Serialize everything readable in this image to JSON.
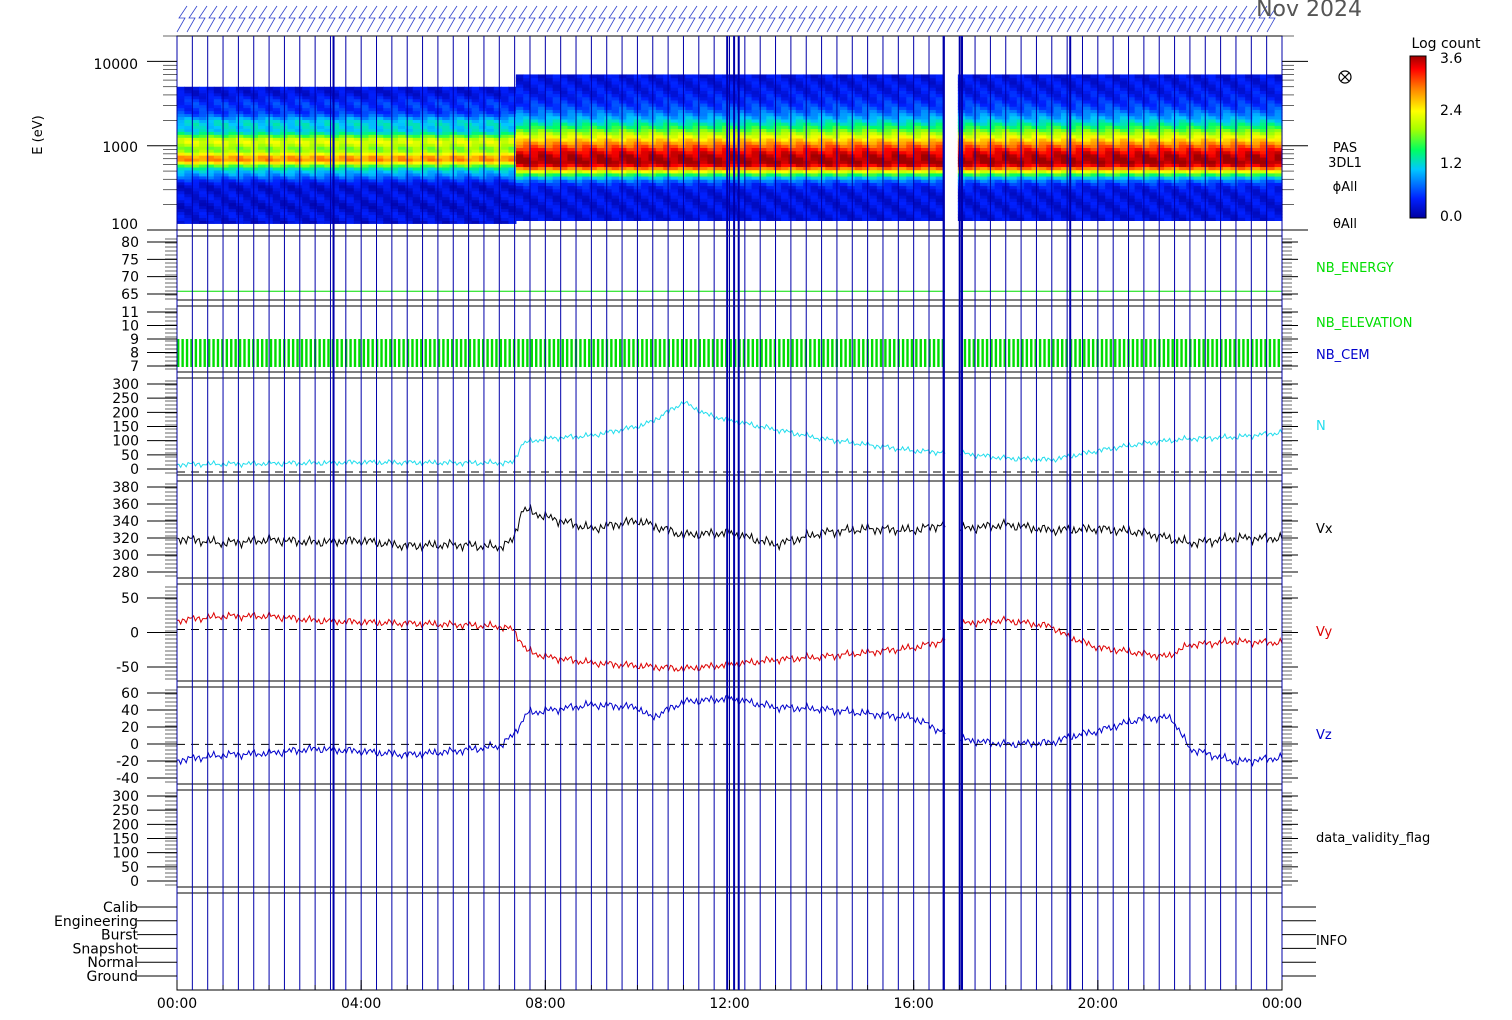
{
  "date_label": "Nov 2024",
  "colorbar": {
    "title": "Log count",
    "ticks": [
      "3.6",
      "2.4",
      "1.2",
      "0.0"
    ],
    "range": [
      0.0,
      3.6
    ]
  },
  "colors": {
    "N": "#22dded",
    "Vx": "#000000",
    "Vy": "#dd0000",
    "Vz": "#0000cc",
    "green": "#00dd00",
    "gridline": "#0000aa"
  },
  "x_axis": {
    "ticks": [
      "00:00",
      "04:00",
      "08:00",
      "12:00",
      "16:00",
      "20:00",
      "00:00"
    ]
  },
  "panels": {
    "spectrogram": {
      "ylabel": "E (eV)",
      "yticks": [
        "10000",
        "1000",
        "100"
      ],
      "right_labels": [
        "PAS",
        "3DL1",
        "ϕAll",
        "θAll"
      ],
      "icon": "circled-times-icon"
    },
    "nb_energy": {
      "yticks": [
        "80",
        "75",
        "70",
        "65"
      ],
      "label": "NB_ENERGY"
    },
    "nb_elevation": {
      "yticks": [
        "11",
        "10",
        "9",
        "8",
        "7"
      ],
      "labels": [
        "NB_ELEVATION",
        "NB_CEM"
      ]
    },
    "density": {
      "yticks": [
        "300",
        "250",
        "200",
        "150",
        "100",
        "50",
        "0"
      ],
      "label": "N"
    },
    "vx": {
      "yticks": [
        "380",
        "360",
        "340",
        "320",
        "300",
        "280"
      ],
      "label": "Vx"
    },
    "vy": {
      "yticks": [
        "50",
        "0",
        "-50"
      ],
      "label": "Vy"
    },
    "vz": {
      "yticks": [
        "60",
        "40",
        "20",
        "0",
        "-20",
        "-40"
      ],
      "label": "Vz"
    },
    "validity": {
      "yticks": [
        "300",
        "250",
        "200",
        "150",
        "100",
        "50",
        "0"
      ],
      "label": "data_validity_flag"
    },
    "info": {
      "yticks": [
        "Calib",
        "Engineering",
        "Burst",
        "Snapshot",
        "Normal",
        "Ground"
      ],
      "label": "INFO"
    }
  },
  "chart_data": [
    {
      "type": "heatmap",
      "name": "PAS 3DL1 energy spectrogram",
      "x_hours": [
        0,
        7.3,
        7.4,
        16.6,
        16.7,
        17.0,
        24
      ],
      "energy_band_eV": {
        "before_7_3h": [
          120,
          5000
        ],
        "after_7_3h": [
          130,
          7000
        ]
      },
      "peak_energy_eV": {
        "before_7_3h": 700,
        "after_7_3h": 650
      },
      "peak_log_count": {
        "before_7_3h": 2.4,
        "after_7_3h": 3.3
      },
      "data_gap_hours": [
        16.7,
        17.0
      ],
      "ylim_eV": [
        100,
        20000
      ],
      "y_scale": "log"
    },
    {
      "type": "line",
      "name": "N",
      "x_hours": [
        0,
        2,
        4,
        6,
        7.3,
        7.5,
        8,
        9,
        10,
        10.3,
        11,
        11.5,
        12,
        13,
        14,
        15,
        16,
        16.6,
        17.1,
        18,
        19,
        20,
        21,
        22,
        23,
        24
      ],
      "values": [
        25,
        28,
        32,
        30,
        30,
        95,
        110,
        120,
        150,
        165,
        230,
        190,
        170,
        140,
        110,
        90,
        70,
        65,
        60,
        45,
        40,
        70,
        95,
        110,
        115,
        130
      ],
      "ylim": [
        -10,
        310
      ]
    },
    {
      "type": "line",
      "name": "Vx",
      "x_hours": [
        0,
        1,
        2,
        3,
        4,
        5,
        6,
        7,
        7.3,
        7.5,
        8,
        9,
        10,
        11,
        12,
        13,
        14,
        15,
        16,
        16.6,
        17.1,
        18,
        19,
        20,
        21,
        22,
        23,
        24
      ],
      "values": [
        318,
        312,
        316,
        313,
        315,
        308,
        310,
        307,
        315,
        355,
        345,
        330,
        340,
        322,
        325,
        310,
        325,
        330,
        328,
        335,
        330,
        335,
        328,
        330,
        325,
        312,
        318,
        318
      ],
      "ylim": [
        268,
        390
      ]
    },
    {
      "type": "line",
      "name": "Vy",
      "x_hours": [
        0,
        1,
        2,
        3,
        4,
        5,
        6,
        7,
        7.3,
        7.6,
        8,
        9,
        10,
        11,
        12,
        13,
        14,
        15,
        16,
        16.6,
        17.1,
        18,
        19,
        19.3,
        20,
        21,
        21.5,
        22,
        23,
        24
      ],
      "values": [
        15,
        22,
        22,
        15,
        12,
        10,
        8,
        5,
        0,
        -35,
        -45,
        -55,
        -60,
        -65,
        -58,
        -50,
        -45,
        -38,
        -30,
        -20,
        10,
        15,
        5,
        -10,
        -30,
        -40,
        -45,
        -25,
        -20,
        -22
      ],
      "ylim": [
        -85,
        75
      ]
    },
    {
      "type": "line",
      "name": "Vz",
      "x_hours": [
        0,
        1,
        2,
        3,
        4,
        5,
        6,
        7,
        7.3,
        7.6,
        8,
        9,
        10,
        10.3,
        11,
        12,
        13,
        14,
        15,
        16,
        16.6,
        17.1,
        18,
        19,
        19.5,
        20,
        21,
        21.6,
        22,
        23,
        24
      ],
      "values": [
        -18,
        -12,
        -10,
        -5,
        -8,
        -12,
        -8,
        -2,
        10,
        35,
        38,
        45,
        42,
        30,
        48,
        52,
        42,
        40,
        35,
        30,
        15,
        5,
        0,
        2,
        10,
        15,
        30,
        30,
        -5,
        -20,
        -15
      ],
      "ylim": [
        -45,
        65
      ]
    },
    {
      "type": "line",
      "name": "NB_ENERGY",
      "x_hours": [
        0,
        24
      ],
      "values": [
        63,
        63
      ],
      "ylim": [
        60,
        82
      ]
    }
  ]
}
